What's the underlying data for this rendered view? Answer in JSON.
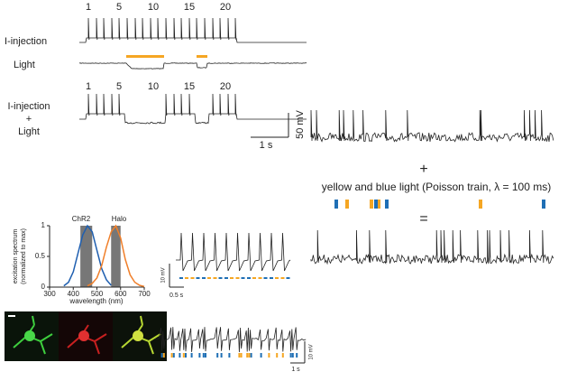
{
  "top_panel": {
    "spike_numbers_1": [
      1,
      5,
      10,
      15,
      20
    ],
    "spike_numbers_2": [
      1,
      5,
      10,
      15,
      20
    ],
    "rows": [
      "I-injection",
      "Light"
    ],
    "combined_label": [
      "I-injection",
      "+",
      "Light"
    ],
    "scale_voltage": "50 mV",
    "scale_time": "1 s"
  },
  "poisson_panel": {
    "plus": "+",
    "caption": "yellow and blue light (Poisson train, λ = 100 ms)",
    "equals": "="
  },
  "spectrum": {
    "type": "line",
    "ylabel": [
      "excitation spectrum",
      "(normalized to max)"
    ],
    "xlabel": "wavelength (nm)",
    "xlim": [
      300,
      700
    ],
    "ylim": [
      0,
      1
    ],
    "xticks": [
      300,
      400,
      500,
      600,
      700
    ],
    "yticks": [
      0,
      0.5,
      1
    ],
    "bands": [
      [
        430,
        480
      ],
      [
        560,
        600
      ]
    ],
    "series": [
      {
        "name": "ChR2",
        "color": "#1f5fb0",
        "x": [
          360,
          380,
          400,
          420,
          440,
          460,
          480,
          500,
          520,
          540,
          560
        ],
        "values": [
          0.02,
          0.08,
          0.25,
          0.55,
          0.85,
          1.0,
          0.9,
          0.6,
          0.3,
          0.12,
          0.03
        ]
      },
      {
        "name": "Halo",
        "color": "#f07f2a",
        "x": [
          460,
          480,
          500,
          520,
          540,
          560,
          580,
          600,
          620,
          640,
          660,
          680,
          700
        ],
        "values": [
          0.02,
          0.06,
          0.15,
          0.35,
          0.65,
          0.9,
          1.0,
          0.8,
          0.45,
          0.2,
          0.08,
          0.03,
          0.01
        ]
      }
    ]
  },
  "train_panel": {
    "scale_voltage": "10 mV",
    "scale_time": "0.5 s"
  },
  "poisson_trace_panel": {
    "scale_voltage": "10 mV",
    "scale_time": "1 s"
  }
}
